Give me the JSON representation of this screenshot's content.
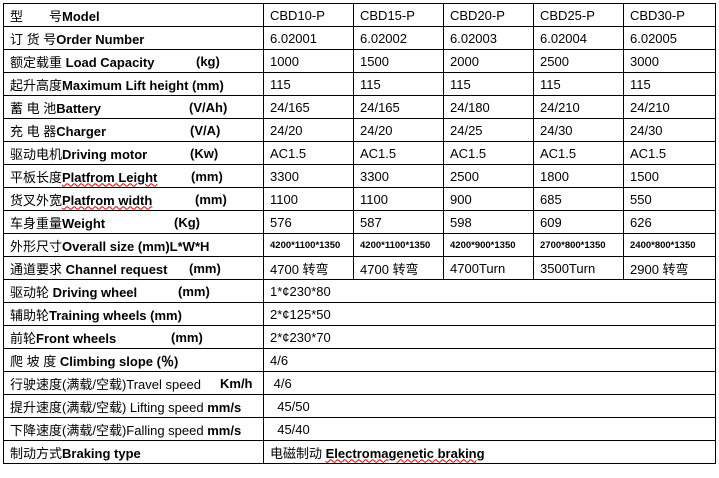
{
  "models": [
    "CBD10-P",
    "CBD15-P",
    "CBD20-P",
    "CBD25-P",
    "CBD30-P"
  ],
  "rows": [
    {
      "cn": "型　　号",
      "en": "Model",
      "unit": "",
      "values": [
        "CBD10-P",
        "CBD15-P",
        "CBD20-P",
        "CBD25-P",
        "CBD30-P"
      ]
    },
    {
      "cn": "订 货 号",
      "en": "Order Number",
      "unit": "",
      "values": [
        "6.02001",
        "6.02002",
        "6.02003",
        "6.02004",
        "6.02005"
      ]
    },
    {
      "cn": "额定载重 ",
      "en": "Load Capacity",
      "unit": "(kg)",
      "values": [
        "1000",
        "1500",
        "2000",
        "2500",
        "3000"
      ]
    },
    {
      "cn": "起升高度",
      "en": "Maximum Lift height (mm)",
      "unit": "",
      "values": [
        "115",
        "115",
        "115",
        "115",
        "115"
      ]
    },
    {
      "cn": "蓄 电 池",
      "en": "Battery",
      "unit": "(V/Ah)",
      "values": [
        "24/165",
        "24/165",
        "24/180",
        "24/210",
        "24/210"
      ]
    },
    {
      "cn": "充 电 器",
      "en": "Charger",
      "unit": "(V/A)",
      "values": [
        "24/20",
        "24/20",
        "24/25",
        "24/30",
        "24/30"
      ]
    },
    {
      "cn": "驱动电机",
      "en": "Driving motor",
      "unit": "(Kw)",
      "values": [
        "AC1.5",
        "AC1.5",
        "AC1.5",
        "AC1.5",
        "AC1.5"
      ]
    },
    {
      "cn": "平板长度",
      "en": "Platfrom Leight",
      "unit": "(mm)",
      "values": [
        "3300",
        "3300",
        "2500",
        "1800",
        "1500"
      ]
    },
    {
      "cn": "货叉外宽",
      "en": "Platfrom width",
      "unit": "(mm)",
      "values": [
        "1100",
        "1100",
        "900",
        "685",
        "550"
      ]
    },
    {
      "cn": "车身重量",
      "en": "Weight",
      "unit": "(Kg)",
      "values": [
        "576",
        "587",
        "598",
        "609",
        "626"
      ]
    },
    {
      "cn": "外形尺寸",
      "en": "Overall size (mm)L*W*H",
      "unit": "",
      "values": [
        "4200*1100*1350",
        "4200*1100*1350",
        "4200*900*1350",
        "2700*800*1350",
        "2400*800*1350"
      ]
    },
    {
      "cn": "通道要求 ",
      "en": "Channel request",
      "unit": "(mm)",
      "values": [
        "4700 转弯",
        "4700 转弯",
        "4700Turn",
        "3500Turn",
        "2900 转弯"
      ]
    },
    {
      "cn": "驱动轮 ",
      "en": "Driving wheel",
      "unit": "(mm)",
      "value": "1*¢230*80"
    },
    {
      "cn": "辅助轮",
      "en": "Training wheels (mm)",
      "unit": "",
      "value": "2*¢125*50"
    },
    {
      "cn": "前轮",
      "en": "Front wheels",
      "unit": "(mm)",
      "value": "2*¢230*70"
    },
    {
      "cn": "爬 坡 度 ",
      "en": "Climbing slope (％)",
      "unit": "",
      "value": "4/6"
    },
    {
      "cn": "行驶速度(满载/空载)Travel speed",
      "en": "",
      "unit": "Km/h",
      "value": " 4/6"
    },
    {
      "cn": "提升速度(满载/空载) Lifting speed",
      "en": " mm/s",
      "unit": "",
      "value": "  45/50"
    },
    {
      "cn": "下降速度(满载/空载)Falling speed",
      "en": " mm/s",
      "unit": "",
      "value": "  45/40"
    },
    {
      "cn": "制动方式",
      "en": "Braking type",
      "unit": "",
      "value": "电磁制动 Electromagenetic braking",
      "value_cn": "电磁制动 ",
      "value_en": "Electromagenetic braking"
    }
  ]
}
